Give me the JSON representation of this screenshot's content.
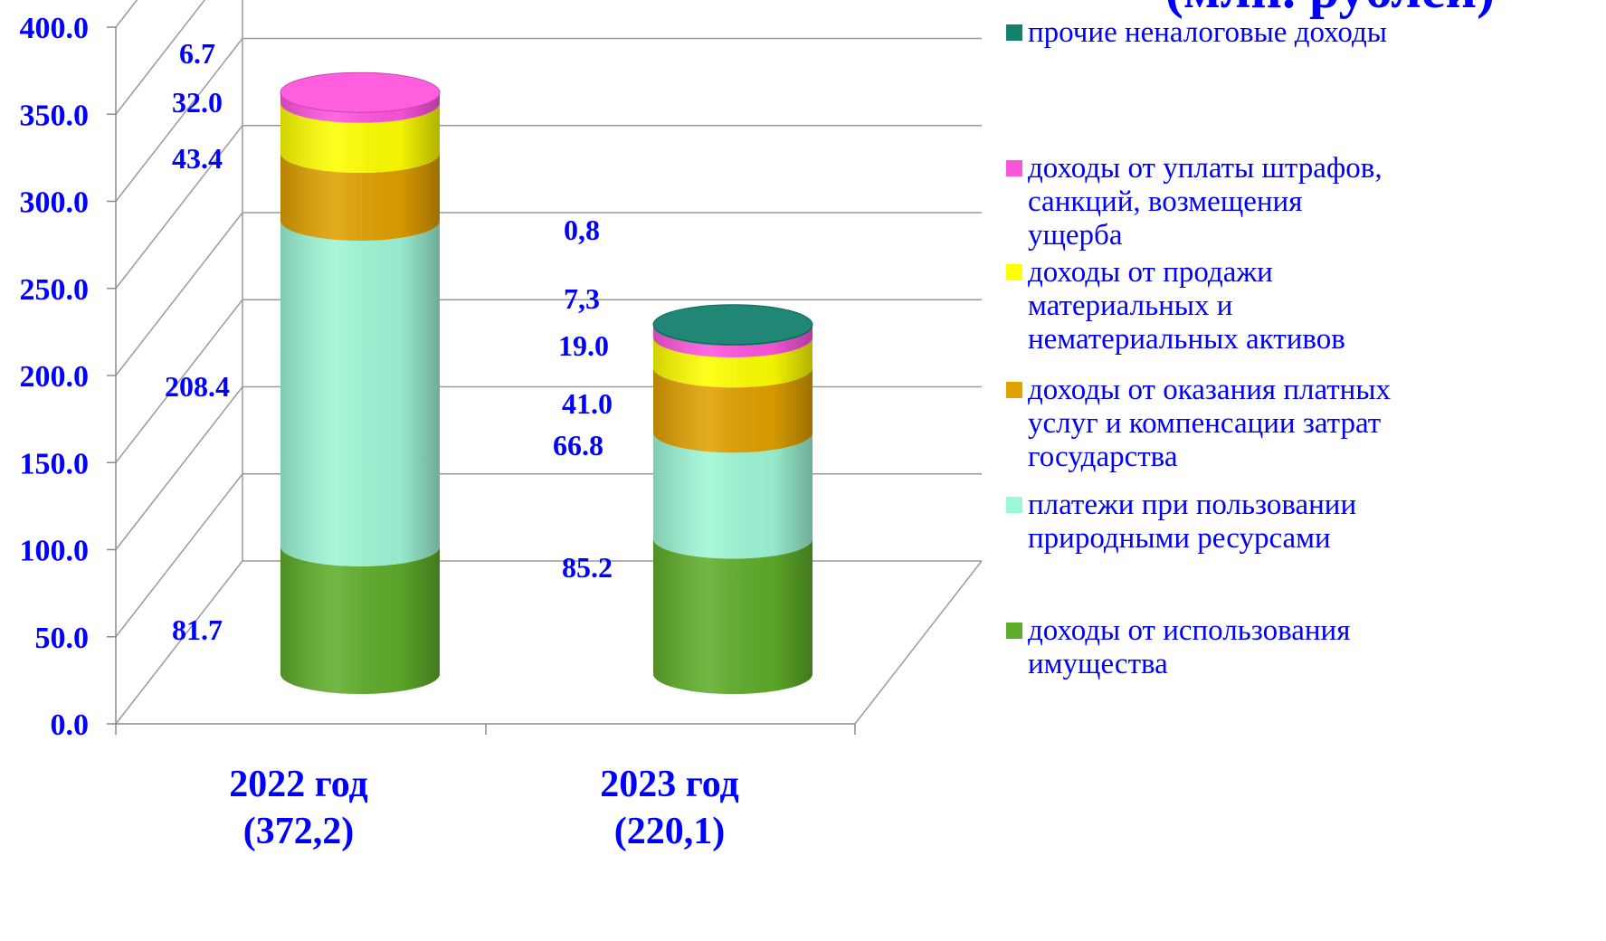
{
  "chart_data": {
    "type": "bar",
    "title_partial": "(млн. рублей)",
    "categories": [
      {
        "label": "2022 год",
        "total_label": "(372,2)"
      },
      {
        "label": "2023 год",
        "total_label": "(220,1)"
      }
    ],
    "series": [
      {
        "name": "доходы от использования имущества",
        "name_lines": [
          "доходы от использования",
          "имущества"
        ],
        "color": "#5fad2a",
        "values": [
          81.7,
          85.2
        ],
        "labels": [
          "81.7",
          "85.2"
        ]
      },
      {
        "name": "платежи при пользовании природными ресурсами",
        "name_lines": [
          "платежи при пользовании",
          "природными ресурсами"
        ],
        "color": "#9ef7d6",
        "values": [
          208.4,
          66.8
        ],
        "labels": [
          "208.4",
          "66.8"
        ]
      },
      {
        "name": "доходы от оказания платных услуг и компенсации затрат государства",
        "name_lines": [
          "доходы от оказания платных",
          "услуг и компенсации затрат",
          "государства"
        ],
        "color": "#e0a000",
        "values": [
          43.4,
          41.0
        ],
        "labels": [
          "43.4",
          "41.0"
        ]
      },
      {
        "name": "доходы от продажи материальных и нематериальных активов",
        "name_lines": [
          "доходы от продажи",
          "материальных и",
          "нематериальных активов"
        ],
        "color": "#ffff00",
        "values": [
          32.0,
          19.0
        ],
        "labels": [
          "32.0",
          "19.0"
        ]
      },
      {
        "name": "доходы от уплаты штрафов, санкций, возмещения ущерба",
        "name_lines": [
          "доходы от уплаты штрафов,",
          "санкций, возмещения",
          "ущерба"
        ],
        "color": "#ff55dd",
        "values": [
          6.7,
          7.3
        ],
        "labels": [
          "6.7",
          "7,3"
        ]
      },
      {
        "name": "прочие неналоговые доходы",
        "name_lines": [
          "прочие неналоговые доходы"
        ],
        "color": "#14806e",
        "values": [
          0,
          0.8
        ],
        "labels": [
          "",
          "0,8"
        ]
      }
    ],
    "y_ticks": [
      "0.0",
      "50.0",
      "100.0",
      "150.0",
      "200.0",
      "250.0",
      "300.0",
      "350.0",
      "400.0"
    ],
    "ylim": [
      0,
      400
    ],
    "grid": true,
    "legend_position": "right"
  }
}
